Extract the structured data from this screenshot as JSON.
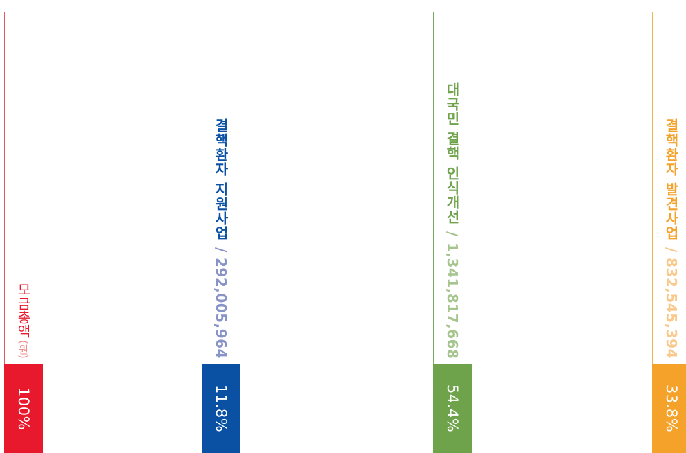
{
  "chart_data": {
    "type": "bar",
    "categories": [
      "모금총액",
      "결핵환자 지원사업",
      "대국민 결핵 인식개선",
      "결핵환자 발견사업"
    ],
    "series": [
      {
        "values": [
          100,
          11.8,
          54.4,
          33.8
        ],
        "labels": [
          "100%",
          "11.8%",
          "54.4%",
          "33.8%"
        ]
      }
    ],
    "amounts": [
      null,
      292005964,
      1341817668,
      832545394
    ],
    "total_label": "모금총액",
    "total_unit": "(원)",
    "items": [
      {
        "name": "결핵환자 지원사업",
        "separator": "/",
        "amount": "292,005,964",
        "percent": "11.8%"
      },
      {
        "name": "대국민 결핵 인식개선",
        "separator": "/",
        "amount": "1,341,817,668",
        "percent": "54.4%"
      },
      {
        "name": "결핵환자 발견사업",
        "separator": "/",
        "amount": "832,545,394",
        "percent": "33.8%"
      }
    ],
    "total_percent": "100%"
  },
  "colors": {
    "total": "#e8192c",
    "total_unit": "#f08a8a",
    "support": "#0a51a4",
    "support_amount": "#8893c7",
    "awareness": "#6fa34b",
    "awareness_amount": "#a6c58e",
    "discovery": "#f5a22b",
    "discovery_amount": "#f8c98a"
  }
}
